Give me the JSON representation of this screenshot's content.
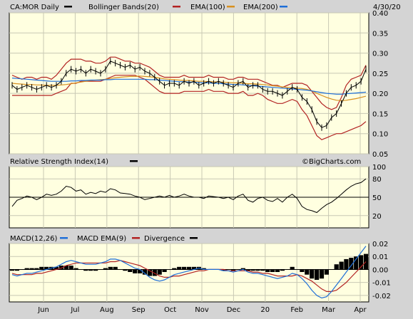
{
  "header": {
    "symbol_label": "CA:MOR Daily",
    "bb_label": "Bollinger Bands(20)",
    "ema100_label": "EMA(100)",
    "ema200_label": "EMA(200)",
    "date_label": "4/30/20"
  },
  "rsi_header": {
    "label": "Relative Strength Index(14)"
  },
  "macd_header": {
    "label1": "MACD(12,26)",
    "label2": "MACD EMA(9)",
    "label3": "Divergence"
  },
  "watermark": "©BigCharts.com",
  "colors": {
    "price": "#000000",
    "bollinger": "#b22222",
    "ema100": "#d89020",
    "ema200": "#1f6fd8",
    "macd": "#1f6fd8",
    "macd_ema": "#b22222",
    "divergence": "#000000",
    "panel_bg": "#ffffe0",
    "outer_bg": "#d4d4d4"
  },
  "chart_data": [
    {
      "panel": "price",
      "type": "line",
      "y_ticks": [
        "0.40",
        "0.35",
        "0.30",
        "0.25",
        "0.20",
        "0.15",
        "0.10",
        "0.05"
      ],
      "ylim": [
        0.05,
        0.4
      ],
      "x_ticks": [
        "Jun",
        "Jul",
        "Aug",
        "Sep",
        "Oct",
        "Nov",
        "Dec",
        "20",
        "Feb",
        "Mar",
        "Apr"
      ],
      "series": [
        {
          "name": "CA:MOR Daily",
          "values": [
            0.22,
            0.21,
            0.215,
            0.22,
            0.215,
            0.21,
            0.215,
            0.22,
            0.215,
            0.22,
            0.23,
            0.25,
            0.26,
            0.255,
            0.26,
            0.25,
            0.26,
            0.255,
            0.25,
            0.26,
            0.28,
            0.275,
            0.27,
            0.265,
            0.27,
            0.26,
            0.265,
            0.255,
            0.25,
            0.24,
            0.23,
            0.22,
            0.225,
            0.225,
            0.22,
            0.23,
            0.225,
            0.23,
            0.22,
            0.225,
            0.23,
            0.225,
            0.23,
            0.225,
            0.22,
            0.215,
            0.225,
            0.23,
            0.215,
            0.22,
            0.22,
            0.21,
            0.205,
            0.205,
            0.2,
            0.195,
            0.205,
            0.215,
            0.21,
            0.19,
            0.18,
            0.16,
            0.13,
            0.115,
            0.12,
            0.14,
            0.15,
            0.175,
            0.2,
            0.215,
            0.22,
            0.23,
            0.26
          ]
        },
        {
          "name": "Bollinger Bands(20)",
          "values": [
            0.245,
            0.24,
            0.235,
            0.24,
            0.24,
            0.235,
            0.24,
            0.24,
            0.235,
            0.245,
            0.26,
            0.275,
            0.285,
            0.285,
            0.285,
            0.28,
            0.28,
            0.275,
            0.275,
            0.28,
            0.29,
            0.29,
            0.285,
            0.28,
            0.28,
            0.275,
            0.275,
            0.27,
            0.265,
            0.255,
            0.245,
            0.24,
            0.24,
            0.24,
            0.24,
            0.245,
            0.24,
            0.24,
            0.24,
            0.24,
            0.245,
            0.24,
            0.24,
            0.24,
            0.235,
            0.235,
            0.24,
            0.24,
            0.235,
            0.235,
            0.235,
            0.23,
            0.225,
            0.22,
            0.22,
            0.215,
            0.22,
            0.225,
            0.225,
            0.225,
            0.22,
            0.205,
            0.19,
            0.175,
            0.165,
            0.16,
            0.165,
            0.19,
            0.22,
            0.235,
            0.24,
            0.245,
            0.27
          ]
        },
        {
          "name": "Bollinger Bands(20)",
          "values": [
            0.195,
            0.195,
            0.195,
            0.195,
            0.195,
            0.195,
            0.195,
            0.195,
            0.195,
            0.2,
            0.205,
            0.21,
            0.225,
            0.225,
            0.23,
            0.23,
            0.23,
            0.23,
            0.23,
            0.235,
            0.24,
            0.245,
            0.245,
            0.245,
            0.245,
            0.245,
            0.24,
            0.235,
            0.225,
            0.215,
            0.205,
            0.2,
            0.2,
            0.2,
            0.2,
            0.205,
            0.205,
            0.205,
            0.205,
            0.205,
            0.21,
            0.205,
            0.205,
            0.205,
            0.2,
            0.2,
            0.2,
            0.205,
            0.195,
            0.195,
            0.2,
            0.195,
            0.185,
            0.18,
            0.175,
            0.175,
            0.18,
            0.185,
            0.18,
            0.16,
            0.145,
            0.12,
            0.095,
            0.085,
            0.09,
            0.095,
            0.1,
            0.1,
            0.105,
            0.11,
            0.115,
            0.12,
            0.13
          ]
        },
        {
          "name": "EMA(100)",
          "values": [
            0.225,
            0.224,
            0.223,
            0.222,
            0.222,
            0.221,
            0.221,
            0.22,
            0.22,
            0.22,
            0.221,
            0.222,
            0.224,
            0.226,
            0.228,
            0.23,
            0.232,
            0.233,
            0.234,
            0.235,
            0.237,
            0.239,
            0.24,
            0.241,
            0.242,
            0.242,
            0.243,
            0.242,
            0.241,
            0.24,
            0.238,
            0.236,
            0.235,
            0.234,
            0.233,
            0.232,
            0.232,
            0.231,
            0.23,
            0.23,
            0.229,
            0.229,
            0.228,
            0.228,
            0.227,
            0.226,
            0.226,
            0.225,
            0.224,
            0.224,
            0.223,
            0.222,
            0.221,
            0.219,
            0.218,
            0.216,
            0.215,
            0.214,
            0.213,
            0.212,
            0.21,
            0.206,
            0.2,
            0.195,
            0.19,
            0.186,
            0.183,
            0.182,
            0.183,
            0.185,
            0.187,
            0.19,
            0.193
          ]
        },
        {
          "name": "EMA(200)",
          "values": [
            0.238,
            0.237,
            0.236,
            0.235,
            0.234,
            0.233,
            0.232,
            0.231,
            0.23,
            0.23,
            0.23,
            0.23,
            0.231,
            0.231,
            0.232,
            0.232,
            0.233,
            0.233,
            0.233,
            0.234,
            0.234,
            0.235,
            0.235,
            0.235,
            0.235,
            0.235,
            0.235,
            0.235,
            0.234,
            0.234,
            0.233,
            0.232,
            0.231,
            0.23,
            0.229,
            0.229,
            0.228,
            0.228,
            0.227,
            0.226,
            0.226,
            0.225,
            0.225,
            0.224,
            0.223,
            0.222,
            0.222,
            0.221,
            0.22,
            0.219,
            0.218,
            0.217,
            0.216,
            0.215,
            0.214,
            0.213,
            0.212,
            0.211,
            0.21,
            0.209,
            0.208,
            0.206,
            0.204,
            0.202,
            0.2,
            0.199,
            0.198,
            0.198,
            0.199,
            0.2,
            0.201,
            0.202,
            0.203
          ]
        }
      ]
    },
    {
      "panel": "rsi",
      "type": "line",
      "y_ticks": [
        "100",
        "80",
        "50",
        "20"
      ],
      "ylim": [
        0,
        100
      ],
      "series": [
        {
          "name": "Relative Strength Index(14)",
          "values": [
            35,
            45,
            48,
            52,
            50,
            46,
            50,
            55,
            53,
            55,
            60,
            68,
            66,
            60,
            62,
            55,
            58,
            56,
            60,
            58,
            64,
            62,
            57,
            56,
            55,
            52,
            50,
            46,
            48,
            50,
            52,
            50,
            53,
            50,
            52,
            55,
            52,
            50,
            50,
            48,
            52,
            51,
            50,
            48,
            50,
            46,
            52,
            55,
            45,
            42,
            48,
            50,
            45,
            43,
            48,
            42,
            50,
            55,
            48,
            35,
            30,
            28,
            25,
            32,
            38,
            42,
            48,
            55,
            62,
            68,
            72,
            74,
            80
          ]
        }
      ]
    },
    {
      "panel": "macd",
      "type": "line",
      "y_ticks": [
        "0.02",
        "0.01",
        "0.00",
        "-0.01",
        "-0.02"
      ],
      "ylim": [
        -0.025,
        0.02
      ],
      "series": [
        {
          "name": "MACD(12,26)",
          "values": [
            -0.004,
            -0.005,
            -0.004,
            -0.003,
            -0.003,
            -0.002,
            -0.001,
            0.0,
            0.001,
            0.002,
            0.004,
            0.006,
            0.007,
            0.006,
            0.005,
            0.004,
            0.004,
            0.004,
            0.005,
            0.006,
            0.008,
            0.008,
            0.007,
            0.005,
            0.003,
            0.001,
            0.0,
            -0.003,
            -0.006,
            -0.008,
            -0.009,
            -0.008,
            -0.006,
            -0.004,
            -0.003,
            -0.002,
            -0.001,
            0.0,
            0.001,
            0.0,
            0.0,
            0.0,
            0.0,
            -0.001,
            -0.001,
            -0.002,
            -0.001,
            0.0,
            -0.002,
            -0.003,
            -0.003,
            -0.004,
            -0.005,
            -0.006,
            -0.007,
            -0.006,
            -0.005,
            -0.003,
            -0.004,
            -0.007,
            -0.011,
            -0.016,
            -0.02,
            -0.022,
            -0.021,
            -0.017,
            -0.012,
            -0.007,
            -0.002,
            0.003,
            0.008,
            0.013,
            0.018
          ]
        },
        {
          "name": "MACD EMA(9)",
          "values": [
            -0.003,
            -0.004,
            -0.004,
            -0.004,
            -0.004,
            -0.003,
            -0.003,
            -0.002,
            -0.001,
            0.0,
            0.001,
            0.003,
            0.004,
            0.005,
            0.005,
            0.005,
            0.005,
            0.005,
            0.005,
            0.005,
            0.006,
            0.006,
            0.007,
            0.006,
            0.005,
            0.004,
            0.003,
            0.001,
            -0.001,
            -0.003,
            -0.005,
            -0.006,
            -0.006,
            -0.005,
            -0.005,
            -0.004,
            -0.003,
            -0.002,
            -0.001,
            -0.001,
            0.0,
            0.0,
            0.0,
            0.0,
            -0.001,
            -0.001,
            -0.001,
            -0.001,
            -0.001,
            -0.002,
            -0.002,
            -0.003,
            -0.003,
            -0.004,
            -0.005,
            -0.005,
            -0.005,
            -0.005,
            -0.004,
            -0.005,
            -0.007,
            -0.009,
            -0.012,
            -0.015,
            -0.017,
            -0.017,
            -0.016,
            -0.013,
            -0.01,
            -0.006,
            -0.002,
            0.002,
            0.006
          ]
        },
        {
          "name": "Divergence",
          "values": [
            -0.001,
            -0.001,
            0.0,
            0.001,
            0.001,
            0.001,
            0.002,
            0.002,
            0.002,
            0.002,
            0.003,
            0.003,
            0.003,
            0.001,
            0.0,
            -0.001,
            -0.001,
            -0.001,
            0.0,
            0.001,
            0.002,
            0.002,
            0.0,
            -0.001,
            -0.002,
            -0.003,
            -0.003,
            -0.004,
            -0.005,
            -0.005,
            -0.004,
            -0.002,
            0.0,
            0.001,
            0.002,
            0.002,
            0.002,
            0.002,
            0.002,
            0.001,
            0.0,
            0.0,
            0.0,
            -0.001,
            0.0,
            -0.001,
            0.0,
            0.001,
            -0.001,
            -0.001,
            -0.001,
            -0.001,
            -0.002,
            -0.002,
            -0.002,
            -0.001,
            0.0,
            0.002,
            0.0,
            -0.002,
            -0.004,
            -0.007,
            -0.008,
            -0.007,
            -0.004,
            0.0,
            0.004,
            0.006,
            0.008,
            0.009,
            0.01,
            0.011,
            0.012
          ]
        }
      ]
    }
  ]
}
